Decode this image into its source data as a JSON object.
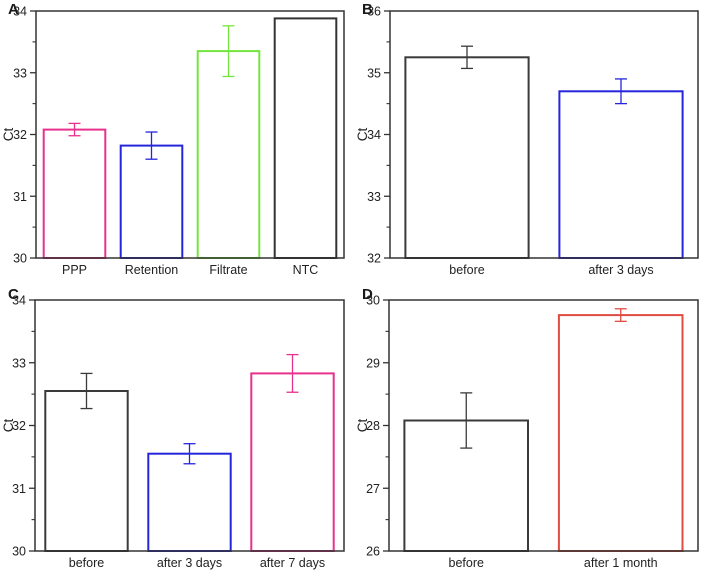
{
  "figure": {
    "background_color": "#ffffff",
    "axis_color": "#333333",
    "text_color": "#222222"
  },
  "chart_data": [
    {
      "panel_label": "A",
      "type": "bar",
      "title": "",
      "xlabel": "",
      "ylabel": "Ct",
      "ylim": [
        30,
        34
      ],
      "ytick_step": 1,
      "minor_tick_step": 0.5,
      "grid": false,
      "legend": "none",
      "categories": [
        "PPP",
        "Retention",
        "Filtrate",
        "NTC"
      ],
      "values": [
        32.08,
        31.82,
        33.35,
        33.88
      ],
      "errors": [
        0.1,
        0.22,
        0.41,
        null
      ],
      "bar_colors": [
        "#E8308C",
        "#2525DC",
        "#74E53E",
        "#333333"
      ]
    },
    {
      "panel_label": "B",
      "type": "bar",
      "title": "",
      "xlabel": "",
      "ylabel": "Ct",
      "ylim": [
        32,
        36
      ],
      "ytick_step": 1,
      "minor_tick_step": 0.5,
      "grid": false,
      "legend": "none",
      "categories": [
        "before",
        "after 3 days"
      ],
      "values": [
        35.25,
        34.7
      ],
      "errors": [
        0.18,
        0.2
      ],
      "bar_colors": [
        "#3A3A3A",
        "#2525DC"
      ]
    },
    {
      "panel_label": "C",
      "type": "bar",
      "title": "",
      "xlabel": "",
      "ylabel": "Ct",
      "ylim": [
        30,
        34
      ],
      "ytick_step": 1,
      "minor_tick_step": 0.5,
      "grid": false,
      "legend": "none",
      "categories": [
        "before",
        "after 3 days",
        "after 7 days"
      ],
      "values": [
        32.55,
        31.55,
        32.83
      ],
      "errors": [
        0.28,
        0.16,
        0.3
      ],
      "bar_colors": [
        "#3A3A3A",
        "#2525DC",
        "#E8308C"
      ]
    },
    {
      "panel_label": "D",
      "type": "bar",
      "title": "",
      "xlabel": "",
      "ylabel": "Ct",
      "ylim": [
        26,
        30
      ],
      "ytick_step": 1,
      "minor_tick_step": 0.5,
      "grid": false,
      "legend": "none",
      "categories": [
        "before",
        "after 1 month"
      ],
      "values": [
        28.08,
        29.76
      ],
      "errors": [
        0.44,
        0.1
      ],
      "bar_colors": [
        "#3A3A3A",
        "#DF4C42"
      ]
    }
  ]
}
